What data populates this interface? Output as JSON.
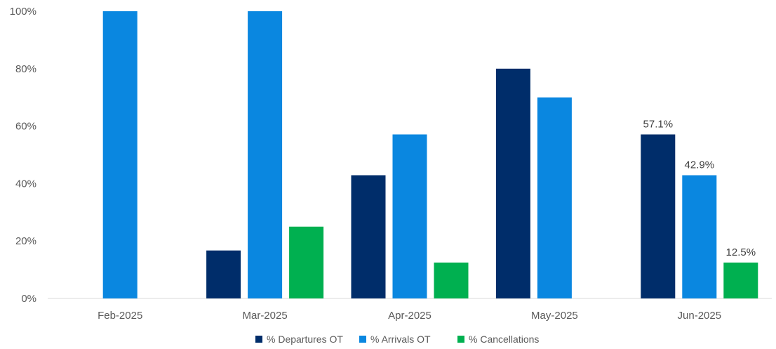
{
  "chart_data": {
    "type": "bar",
    "categories": [
      "Feb-2025",
      "Mar-2025",
      "Apr-2025",
      "May-2025",
      "Jun-2025"
    ],
    "series": [
      {
        "name": "% Departures OT",
        "color": "#002D6A",
        "values": [
          null,
          16.7,
          42.9,
          80.0,
          57.1
        ]
      },
      {
        "name": "% Arrivals OT",
        "color": "#0A87E0",
        "values": [
          100.0,
          100.0,
          57.1,
          70.0,
          42.9
        ]
      },
      {
        "name": "% Cancellations",
        "color": "#00B050",
        "values": [
          null,
          25.0,
          12.5,
          null,
          12.5
        ]
      }
    ],
    "data_labels": [
      {
        "category": "Jun-2025",
        "series": "% Departures OT",
        "text": "57.1%"
      },
      {
        "category": "Jun-2025",
        "series": "% Arrivals OT",
        "text": "42.9%"
      },
      {
        "category": "Jun-2025",
        "series": "% Cancellations",
        "text": "12.5%"
      }
    ],
    "yticks": [
      "0%",
      "20%",
      "40%",
      "60%",
      "80%",
      "100%"
    ],
    "ylim": [
      0,
      100
    ],
    "grid": false,
    "legend": "bottom-center"
  }
}
